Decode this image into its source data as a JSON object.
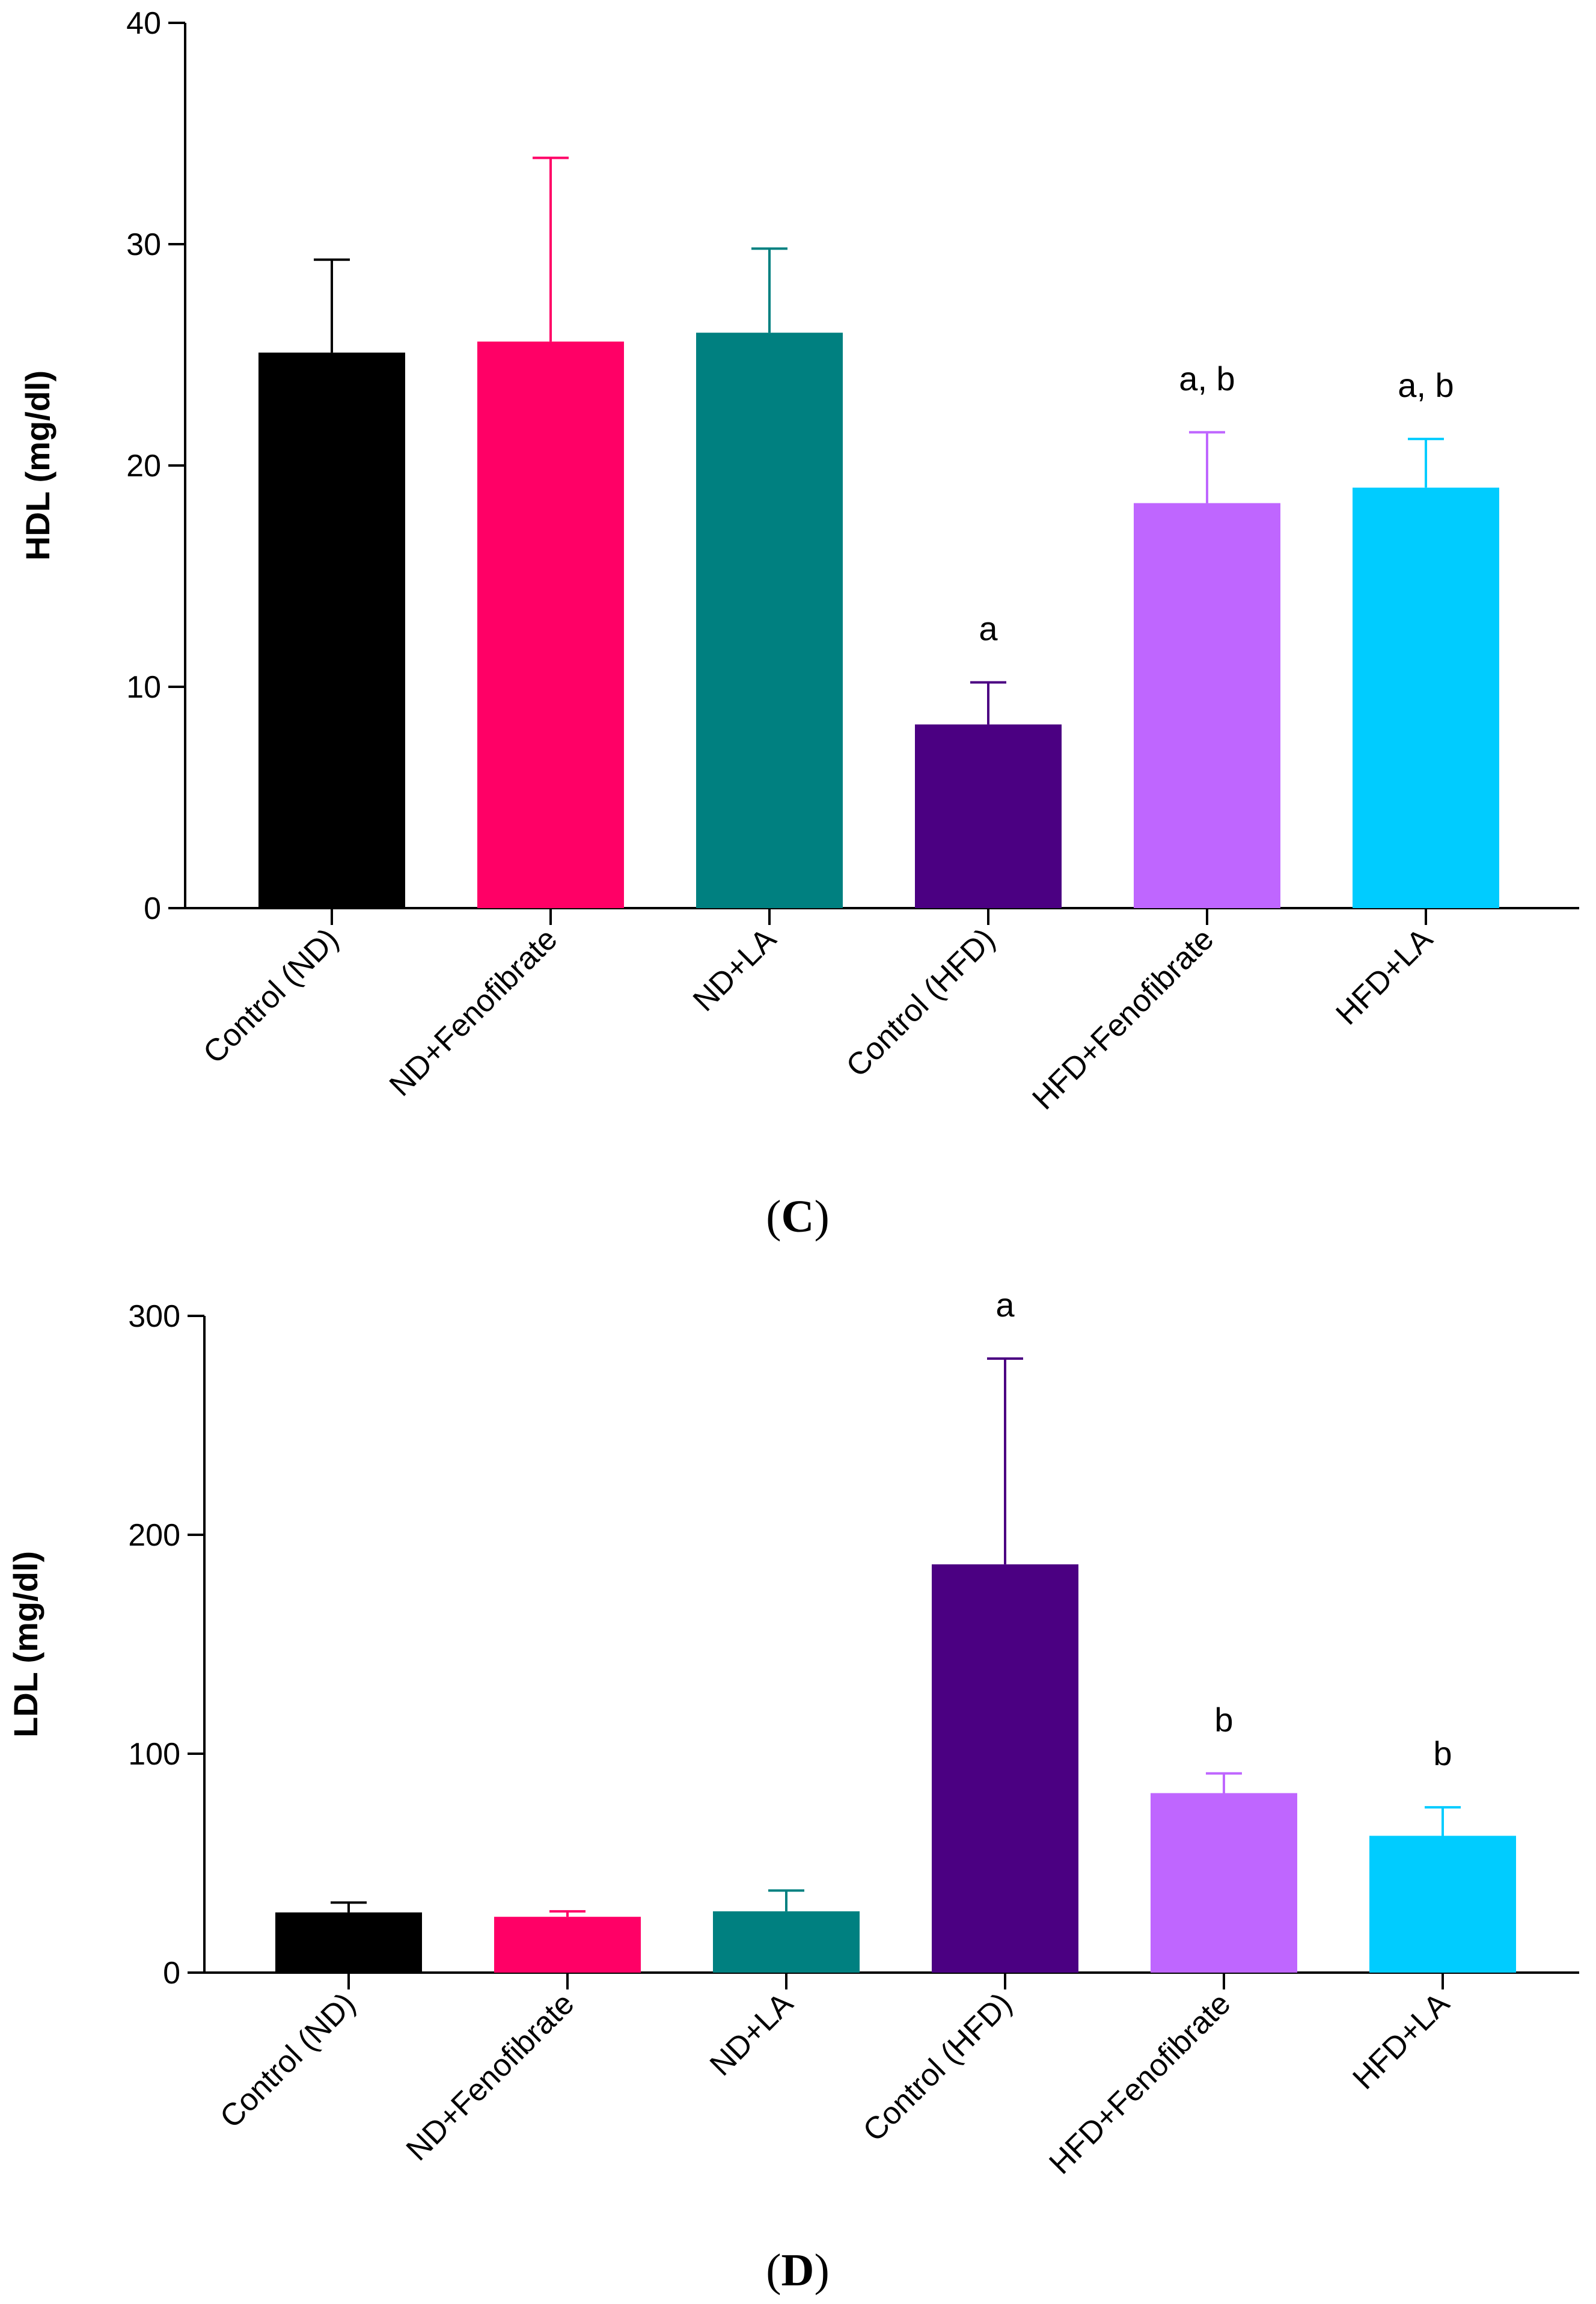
{
  "chart_data": [
    {
      "type": "bar",
      "panel": "C",
      "ylabel": "HDL (mg/dl)",
      "xlabel": "",
      "title": "",
      "ylim": [
        0,
        40
      ],
      "yticks": [
        "0",
        "10",
        "20",
        "30",
        "40"
      ],
      "categories": [
        "Control (ND)",
        "ND+Fenofibrate",
        "ND+LA",
        "Control (HFD)",
        "HFD+Fenofibrate",
        "HFD+LA"
      ],
      "values": [
        25.1,
        25.6,
        26.0,
        8.3,
        18.3,
        19.0
      ],
      "errors": [
        4.2,
        8.3,
        3.8,
        1.9,
        3.2,
        2.2
      ],
      "colors": [
        "#000000",
        "#ff0066",
        "#008080",
        "#4b0082",
        "#bf66ff",
        "#00ccff"
      ],
      "significance": [
        "",
        "",
        "",
        "a",
        "a, b",
        "a, b"
      ]
    },
    {
      "type": "bar",
      "panel": "D",
      "ylabel": "LDL (mg/dl)",
      "xlabel": "",
      "title": "",
      "ylim": [
        0,
        300
      ],
      "yticks": [
        "0",
        "100",
        "200",
        "300"
      ],
      "categories": [
        "Control (ND)",
        "ND+Fenofibrate",
        "ND+LA",
        "Control (HFD)",
        "HFD+Fenofibrate",
        "HFD+LA"
      ],
      "values": [
        27.5,
        25.5,
        28.0,
        186.5,
        82.0,
        62.5
      ],
      "errors": [
        4.5,
        2.5,
        9.5,
        94.0,
        9.0,
        13.0
      ],
      "colors": [
        "#000000",
        "#ff0066",
        "#008080",
        "#4b0082",
        "#bf66ff",
        "#00ccff"
      ],
      "significance": [
        "",
        "",
        "",
        "a",
        "b",
        "b"
      ]
    }
  ],
  "captions": {
    "panel_c": "C",
    "panel_d": "D",
    "open_paren": "(",
    "close_paren": ")"
  }
}
